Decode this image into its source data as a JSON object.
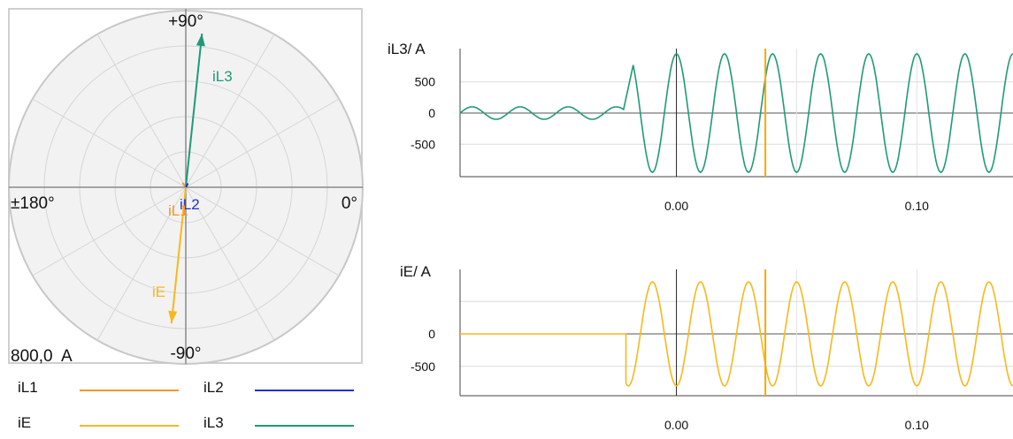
{
  "colors": {
    "iL1": "#f5962a",
    "iL2": "#1e2fd6",
    "iL3": "#1f9a78",
    "iE": "#f7b81c",
    "cursor": "#f2a900"
  },
  "polar": {
    "label_top": "+90°",
    "label_bottom": "-90°",
    "label_left": "±180°",
    "label_right": "0°",
    "scale_label": "800,0  A",
    "phasors": [
      {
        "name": "iL3",
        "magnitude": 700,
        "angle_deg": 84
      },
      {
        "name": "iE",
        "magnitude": 620,
        "angle_deg": -96
      },
      {
        "name": "iL1",
        "magnitude": 25,
        "angle_deg": 125
      },
      {
        "name": "iL2",
        "magnitude": 20,
        "angle_deg": 60
      }
    ],
    "phasor_labels": {
      "iL3": "iL3",
      "iE": "iE",
      "iL1": "iL1",
      "iL2": "iL2"
    }
  },
  "legend": [
    {
      "label": "iL1",
      "color": "#f5962a"
    },
    {
      "label": "iL2",
      "color": "#1e2fd6"
    },
    {
      "label": "iE",
      "color": "#f7b81c"
    },
    {
      "label": "iL3",
      "color": "#1f9a78"
    }
  ],
  "chart_data": [
    {
      "type": "line",
      "ylabel": "iL3/ A",
      "yticks": [
        "500",
        "0",
        "-500"
      ],
      "xticks": [
        "0.00",
        "0.10"
      ],
      "cursor_x": 0.037,
      "series": [
        {
          "name": "iL3",
          "segments": [
            {
              "x_from": -0.09,
              "x_to": -0.022,
              "amplitude": 100,
              "period": 0.02,
              "phase_deg": 180
            },
            {
              "x_from": -0.018,
              "x_to": 0.14,
              "amplitude": 950,
              "period": 0.02,
              "phase_deg": 90
            }
          ]
        }
      ]
    },
    {
      "type": "line",
      "ylabel": "iE/ A",
      "yticks": [
        "0",
        "-500"
      ],
      "xticks": [
        "0.00",
        "0.10"
      ],
      "cursor_x": 0.037,
      "series": [
        {
          "name": "iE",
          "segments": [
            {
              "x_from": -0.09,
              "x_to": -0.021,
              "amplitude": 0,
              "period": 0.02,
              "phase_deg": 0
            },
            {
              "x_from": -0.021,
              "x_to": 0.14,
              "amplitude": 800,
              "period": 0.02,
              "phase_deg": -90
            }
          ]
        }
      ]
    }
  ]
}
